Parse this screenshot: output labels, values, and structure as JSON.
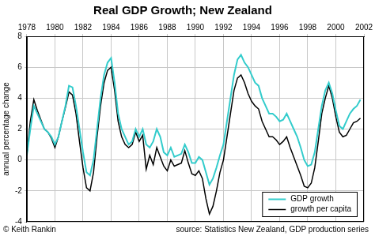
{
  "chart_data": {
    "type": "line",
    "title": "Real GDP Growth; New Zealand",
    "y_label": "annual percentage change",
    "annotations": [
      "© Keith Rankin",
      "source: Statistics New Zealand, GDP production series"
    ],
    "x": [
      1978,
      1978.25,
      1978.5,
      1978.75,
      1979,
      1979.25,
      1979.5,
      1979.75,
      1980,
      1980.25,
      1980.5,
      1980.75,
      1981,
      1981.25,
      1981.5,
      1981.75,
      1982,
      1982.25,
      1982.5,
      1982.75,
      1983,
      1983.25,
      1983.5,
      1983.75,
      1984,
      1984.25,
      1984.5,
      1984.75,
      1985,
      1985.25,
      1985.5,
      1985.75,
      1986,
      1986.25,
      1986.5,
      1986.75,
      1987,
      1987.25,
      1987.5,
      1987.75,
      1988,
      1988.25,
      1988.5,
      1988.75,
      1989,
      1989.25,
      1989.5,
      1989.75,
      1990,
      1990.25,
      1990.5,
      1990.75,
      1991,
      1991.25,
      1991.5,
      1991.75,
      1992,
      1992.25,
      1992.5,
      1992.75,
      1993,
      1993.25,
      1993.5,
      1993.75,
      1994,
      1994.25,
      1994.5,
      1994.75,
      1995,
      1995.25,
      1995.5,
      1995.75,
      1996,
      1996.25,
      1996.5,
      1996.75,
      1997,
      1997.25,
      1997.5,
      1997.75,
      1998,
      1998.25,
      1998.5,
      1998.75,
      1999,
      1999.25,
      1999.5,
      1999.75,
      2000,
      2000.25,
      2000.5,
      2000.75,
      2001,
      2001.25,
      2001.5,
      2001.75
    ],
    "series": [
      {
        "name": "GDP growth",
        "color": "#33cccc",
        "values": [
          0.3,
          2.0,
          3.5,
          3.0,
          2.5,
          2.0,
          1.8,
          1.5,
          1.0,
          1.5,
          2.5,
          3.5,
          4.8,
          4.7,
          3.5,
          2.0,
          0.5,
          -0.8,
          -1.0,
          0.0,
          2.0,
          4.0,
          5.5,
          6.3,
          6.6,
          5.0,
          3.0,
          2.0,
          1.5,
          1.0,
          1.2,
          2.0,
          1.5,
          2.0,
          1.0,
          0.8,
          1.2,
          2.0,
          1.5,
          0.5,
          0.3,
          0.8,
          0.2,
          0.3,
          0.4,
          1.0,
          0.5,
          -0.2,
          -0.2,
          0.2,
          0.0,
          -0.8,
          -1.6,
          -1.2,
          -0.5,
          0.3,
          1.0,
          2.5,
          4.0,
          5.5,
          6.5,
          6.8,
          6.3,
          6.0,
          5.5,
          5.0,
          4.8,
          4.0,
          3.5,
          3.0,
          3.0,
          2.8,
          2.5,
          2.6,
          3.0,
          2.5,
          2.0,
          1.5,
          0.8,
          0.0,
          -0.4,
          -0.3,
          0.5,
          2.0,
          3.5,
          4.5,
          5.0,
          4.3,
          3.2,
          2.2,
          2.0,
          2.5,
          3.0,
          3.3,
          3.5,
          3.9
        ]
      },
      {
        "name": "growth per capita",
        "color": "#000000",
        "values": [
          0.3,
          2.5,
          3.9,
          3.2,
          2.6,
          2.0,
          1.8,
          1.4,
          0.8,
          1.5,
          2.5,
          3.4,
          4.4,
          4.2,
          3.0,
          1.2,
          -0.5,
          -1.8,
          -2.0,
          -0.8,
          1.5,
          3.5,
          5.0,
          5.8,
          6.0,
          4.5,
          2.5,
          1.5,
          1.0,
          0.8,
          1.0,
          1.8,
          1.2,
          1.6,
          -0.6,
          0.3,
          -0.3,
          0.8,
          0.2,
          -0.4,
          -0.7,
          0.0,
          -0.4,
          -0.3,
          -0.2,
          0.6,
          -0.2,
          -0.9,
          -1.0,
          -0.7,
          -1.2,
          -2.5,
          -3.5,
          -3.0,
          -2.0,
          -0.8,
          0.0,
          1.5,
          3.0,
          4.5,
          5.3,
          5.5,
          5.0,
          4.3,
          3.8,
          3.5,
          3.3,
          2.5,
          2.0,
          1.5,
          1.5,
          1.3,
          1.0,
          1.2,
          1.5,
          0.8,
          0.2,
          -0.4,
          -1.0,
          -1.7,
          -1.8,
          -1.5,
          -0.5,
          1.2,
          3.0,
          4.0,
          4.8,
          4.0,
          2.8,
          1.8,
          1.5,
          1.6,
          2.0,
          2.4,
          2.5,
          2.7
        ]
      }
    ],
    "xlim": [
      1978,
      2002
    ],
    "xticks": [
      1978,
      1980,
      1982,
      1984,
      1986,
      1988,
      1990,
      1992,
      1994,
      1996,
      1998,
      2000,
      2002
    ],
    "ylim": [
      -4,
      8
    ],
    "yticks": [
      -4,
      -2,
      0,
      2,
      4,
      6,
      8
    ],
    "grid": true,
    "legend": "lower right"
  }
}
